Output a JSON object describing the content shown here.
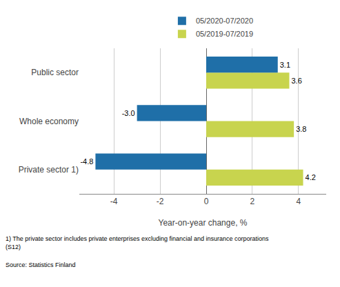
{
  "chart_data": {
    "type": "bar",
    "orientation": "horizontal",
    "categories": [
      "Private sector 1)",
      "Whole economy",
      "Public sector"
    ],
    "series": [
      {
        "name": "05/2020-07/2020",
        "color": "#1F6FA8",
        "values": [
          -4.8,
          -3.0,
          3.1
        ],
        "value_labels": [
          "-4.8",
          "-3.0",
          "3.1"
        ]
      },
      {
        "name": "05/2019-07/2019",
        "color": "#C8D44E",
        "values": [
          4.2,
          3.8,
          3.6
        ],
        "value_labels": [
          "4.2",
          "3.8",
          "3.6"
        ]
      }
    ],
    "xlim": [
      -5.5,
      5.2
    ],
    "xticks": [
      -4,
      -2,
      0,
      2,
      4
    ],
    "xlabel": "Year-on-year change, %",
    "annotations": [
      "1) The private sector includes private enterprises excluding financial and insurance corporations\n(S12)",
      "Source: Statistics Finland"
    ],
    "data_labels": true,
    "grid": true,
    "legend": "top"
  }
}
